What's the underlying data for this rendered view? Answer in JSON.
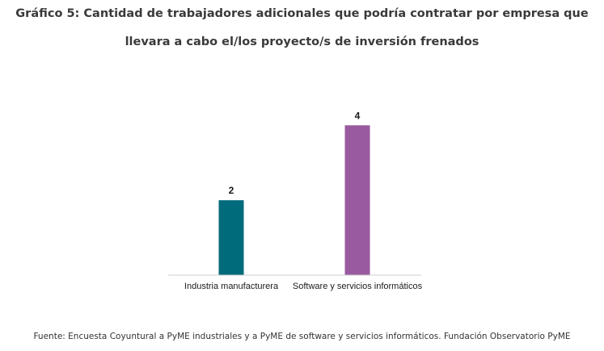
{
  "title_line1": "Gráfico 5: Cantidad de trabajadores adicionales que podría contratar por empresa que",
  "title_line2": "llevara a cabo el/los proyecto/s de inversión frenados",
  "source": "Fuente: Encuesta Coyuntural a PyME industriales y a PyME de software y servicios informáticos. Fundación Observatorio PyME",
  "chart_data": {
    "type": "bar",
    "categories": [
      "Industria manufacturera",
      "Software y servicios informáticos"
    ],
    "values": [
      2,
      4
    ],
    "data_labels": [
      "2",
      "4"
    ],
    "colors": [
      "#006b7b",
      "#995a9f"
    ],
    "ylim": [
      0,
      4.2
    ],
    "grid": false,
    "legend": "none"
  }
}
